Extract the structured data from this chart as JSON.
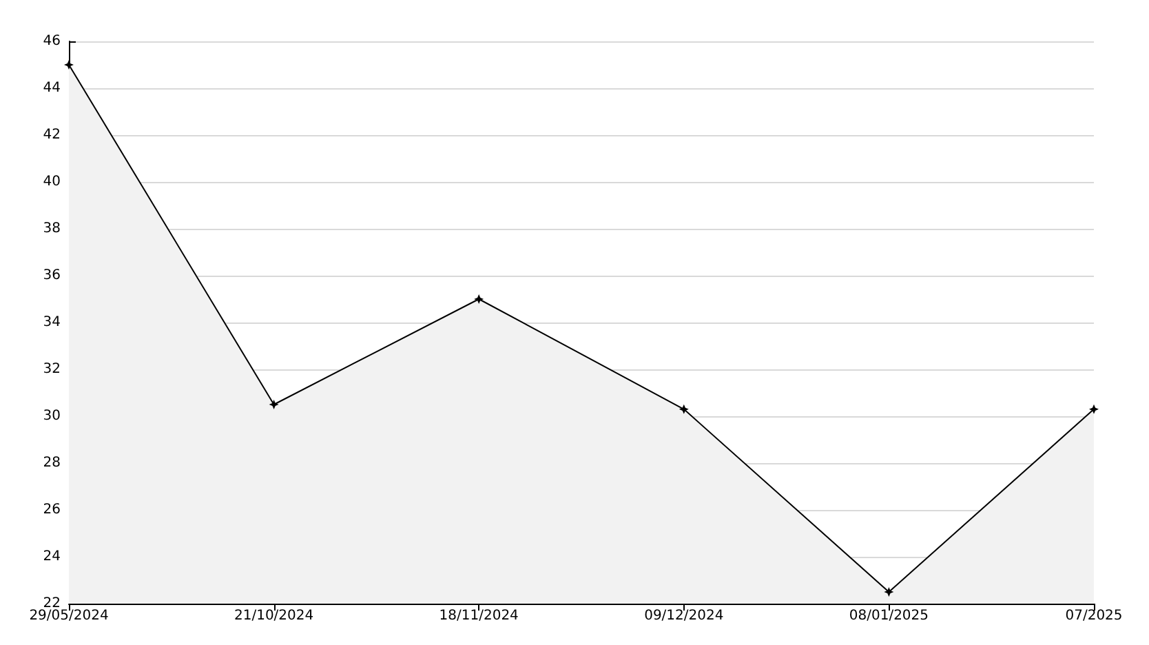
{
  "chart_data": {
    "type": "area",
    "categories": [
      "29/05/2024",
      "21/10/2024",
      "18/11/2024",
      "09/12/2024",
      "08/01/2025",
      "07/2025"
    ],
    "series": [
      {
        "color": "#000000",
        "values": [
          45,
          30.5,
          35,
          30.3,
          22.5,
          30.3
        ]
      }
    ],
    "ylim": [
      22,
      46
    ],
    "yticks": [
      22,
      24,
      26,
      28,
      30,
      32,
      34,
      36,
      38,
      40,
      42,
      44,
      46
    ],
    "grid": "y",
    "marker": "star",
    "line_style": "solid"
  }
}
